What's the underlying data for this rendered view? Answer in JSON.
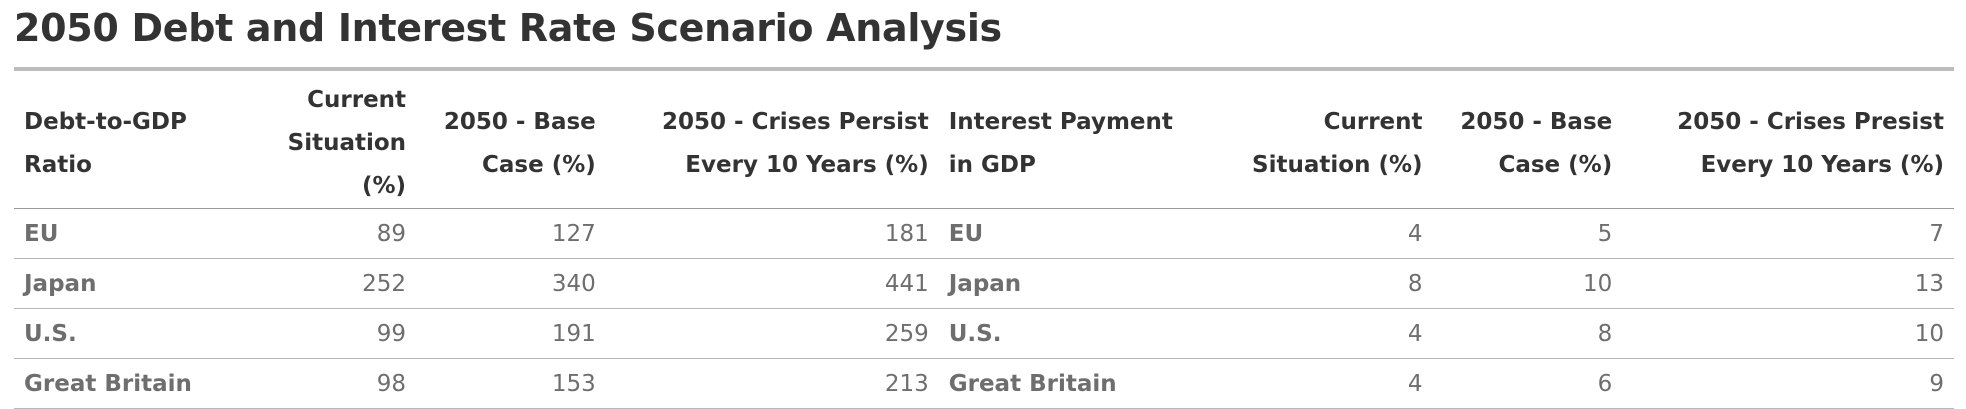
{
  "chart_data": {
    "type": "table",
    "title": "2050 Debt and Interest Rate Scenario Analysis",
    "columns": [
      [
        "Debt-to-GDP",
        "Ratio"
      ],
      [
        "Current",
        "Situation (%)"
      ],
      [
        "2050 - Base",
        "Case (%)"
      ],
      [
        "2050 - Crises Persist",
        "Every 10 Years (%)"
      ],
      [
        "Interest Payment",
        "in GDP"
      ],
      [
        "Current",
        "Situation (%)"
      ],
      [
        "2050 - Base",
        "Case (%)"
      ],
      [
        "2050 - Crises Presist",
        "Every 10 Years (%)"
      ]
    ],
    "rows": [
      [
        "EU",
        "89",
        "127",
        "181",
        "EU",
        "4",
        "5",
        "7"
      ],
      [
        "Japan",
        "252",
        "340",
        "441",
        "Japan",
        "8",
        "10",
        "13"
      ],
      [
        "U.S.",
        "99",
        "191",
        "259",
        "U.S.",
        "4",
        "8",
        "10"
      ],
      [
        "Great Britain",
        "98",
        "153",
        "213",
        "Great Britain",
        "4",
        "6",
        "9"
      ]
    ]
  }
}
